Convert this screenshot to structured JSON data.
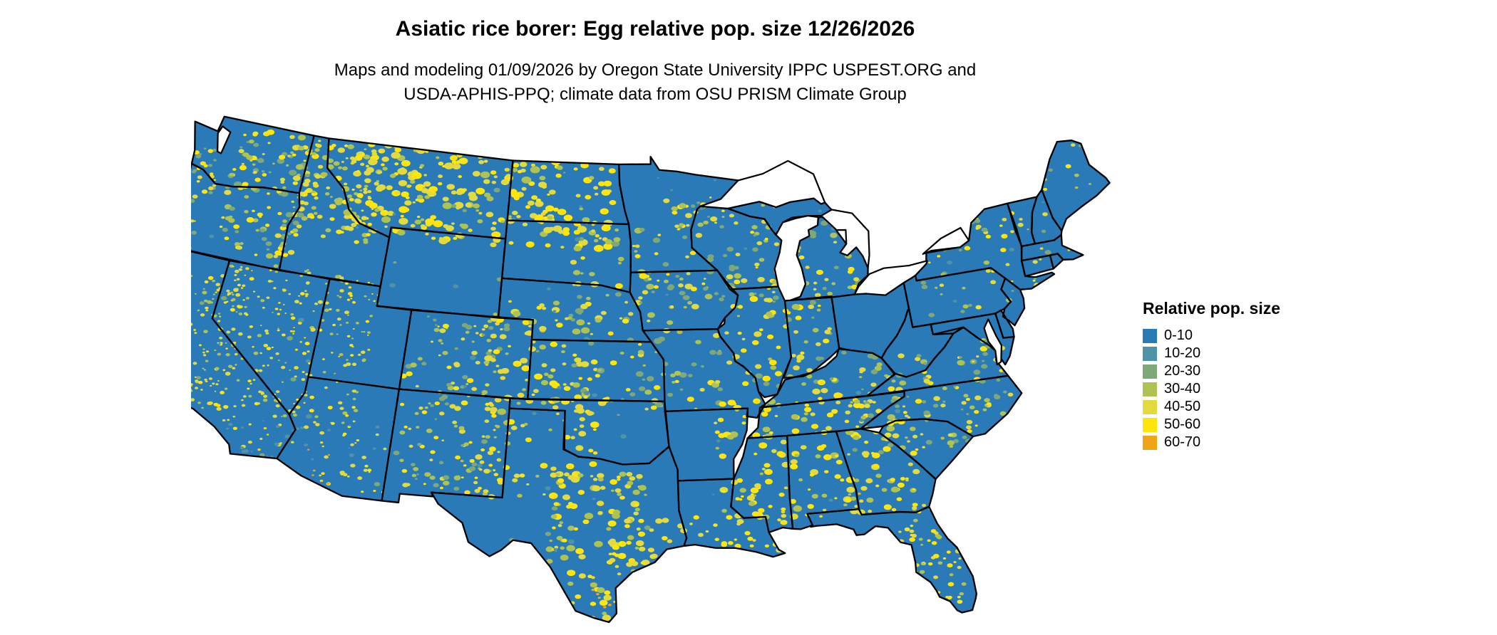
{
  "title": "Asiatic rice borer: Egg relative pop. size 12/26/2026",
  "subtitle_line1": "Maps and modeling 01/09/2026 by Oregon State University IPPC USPEST.ORG and",
  "subtitle_line2": "USDA-APHIS-PPQ; climate data from OSU PRISM Climate Group",
  "legend": {
    "title": "Relative pop. size",
    "items": [
      {
        "label": "0-10",
        "color": "#2a7ab8"
      },
      {
        "label": "10-20",
        "color": "#4e93a6"
      },
      {
        "label": "20-30",
        "color": "#7fa879"
      },
      {
        "label": "30-40",
        "color": "#afc353"
      },
      {
        "label": "40-50",
        "color": "#e2da3e"
      },
      {
        "label": "50-60",
        "color": "#ffe50a"
      },
      {
        "label": "60-70",
        "color": "#f0a418"
      }
    ]
  },
  "map": {
    "region": "Continental United States",
    "base_color": "#2a7ab8",
    "border_color": "#000000",
    "water_color": "#ffffff",
    "background": "#ffffff"
  }
}
